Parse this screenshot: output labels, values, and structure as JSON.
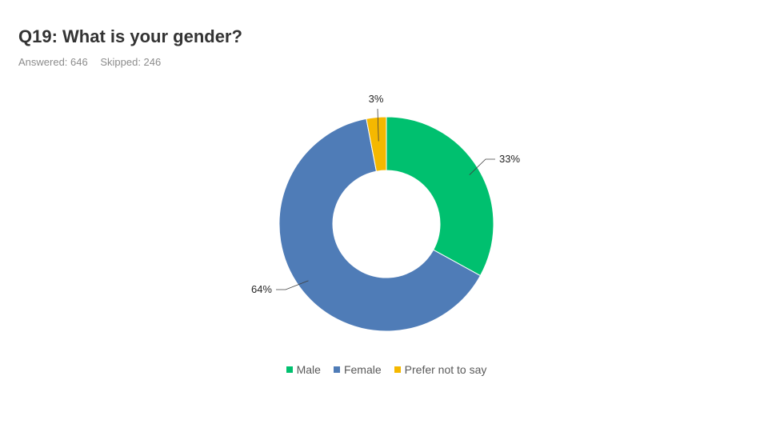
{
  "header": {
    "title": "Q19: What is your gender?",
    "answered": "Answered: 646",
    "skipped": "Skipped: 246"
  },
  "chart_data": {
    "type": "pie",
    "variant": "donut",
    "title": "Q19: What is your gender?",
    "categories": [
      "Male",
      "Female",
      "Prefer not to say"
    ],
    "values": [
      33,
      64,
      3
    ],
    "labels": [
      "33%",
      "64%",
      "3%"
    ],
    "colors": [
      "#00c06f",
      "#4f7cb7",
      "#f5b800"
    ],
    "legend_position": "bottom"
  }
}
